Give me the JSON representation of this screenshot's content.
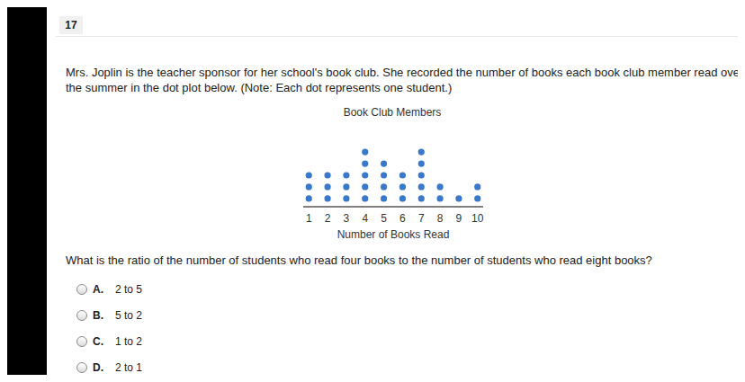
{
  "question_number": "17",
  "stem": [
    "Mrs. Joplin is the teacher sponsor for her school's book club. She recorded the number of books each book club member read over",
    "the summer in the dot plot below. (Note: Each dot represents one student.)"
  ],
  "chart_data": {
    "type": "dot_plot",
    "title": "Book Club Members",
    "x_label": "Number of Books Read",
    "x": [
      1,
      2,
      3,
      4,
      5,
      6,
      7,
      8,
      9,
      10
    ],
    "values": [
      3,
      3,
      3,
      5,
      4,
      3,
      5,
      2,
      1,
      2
    ],
    "color": "#3a78c9",
    "xlim": [
      0.7,
      10.3
    ],
    "xticks": [
      1,
      2,
      3,
      4,
      5,
      6,
      7,
      8,
      9,
      10
    ],
    "ylim": [
      0.3,
      5.7
    ],
    "tick_labels": "x"
  },
  "question": "What is the ratio of the number of students who read four books to the number of students who read eight books?",
  "options": [
    {
      "letter": "A.",
      "text": "2 to 5"
    },
    {
      "letter": "B.",
      "text": "5 to 2"
    },
    {
      "letter": "C.",
      "text": "1 to 2"
    },
    {
      "letter": "D.",
      "text": "2 to 1"
    }
  ]
}
